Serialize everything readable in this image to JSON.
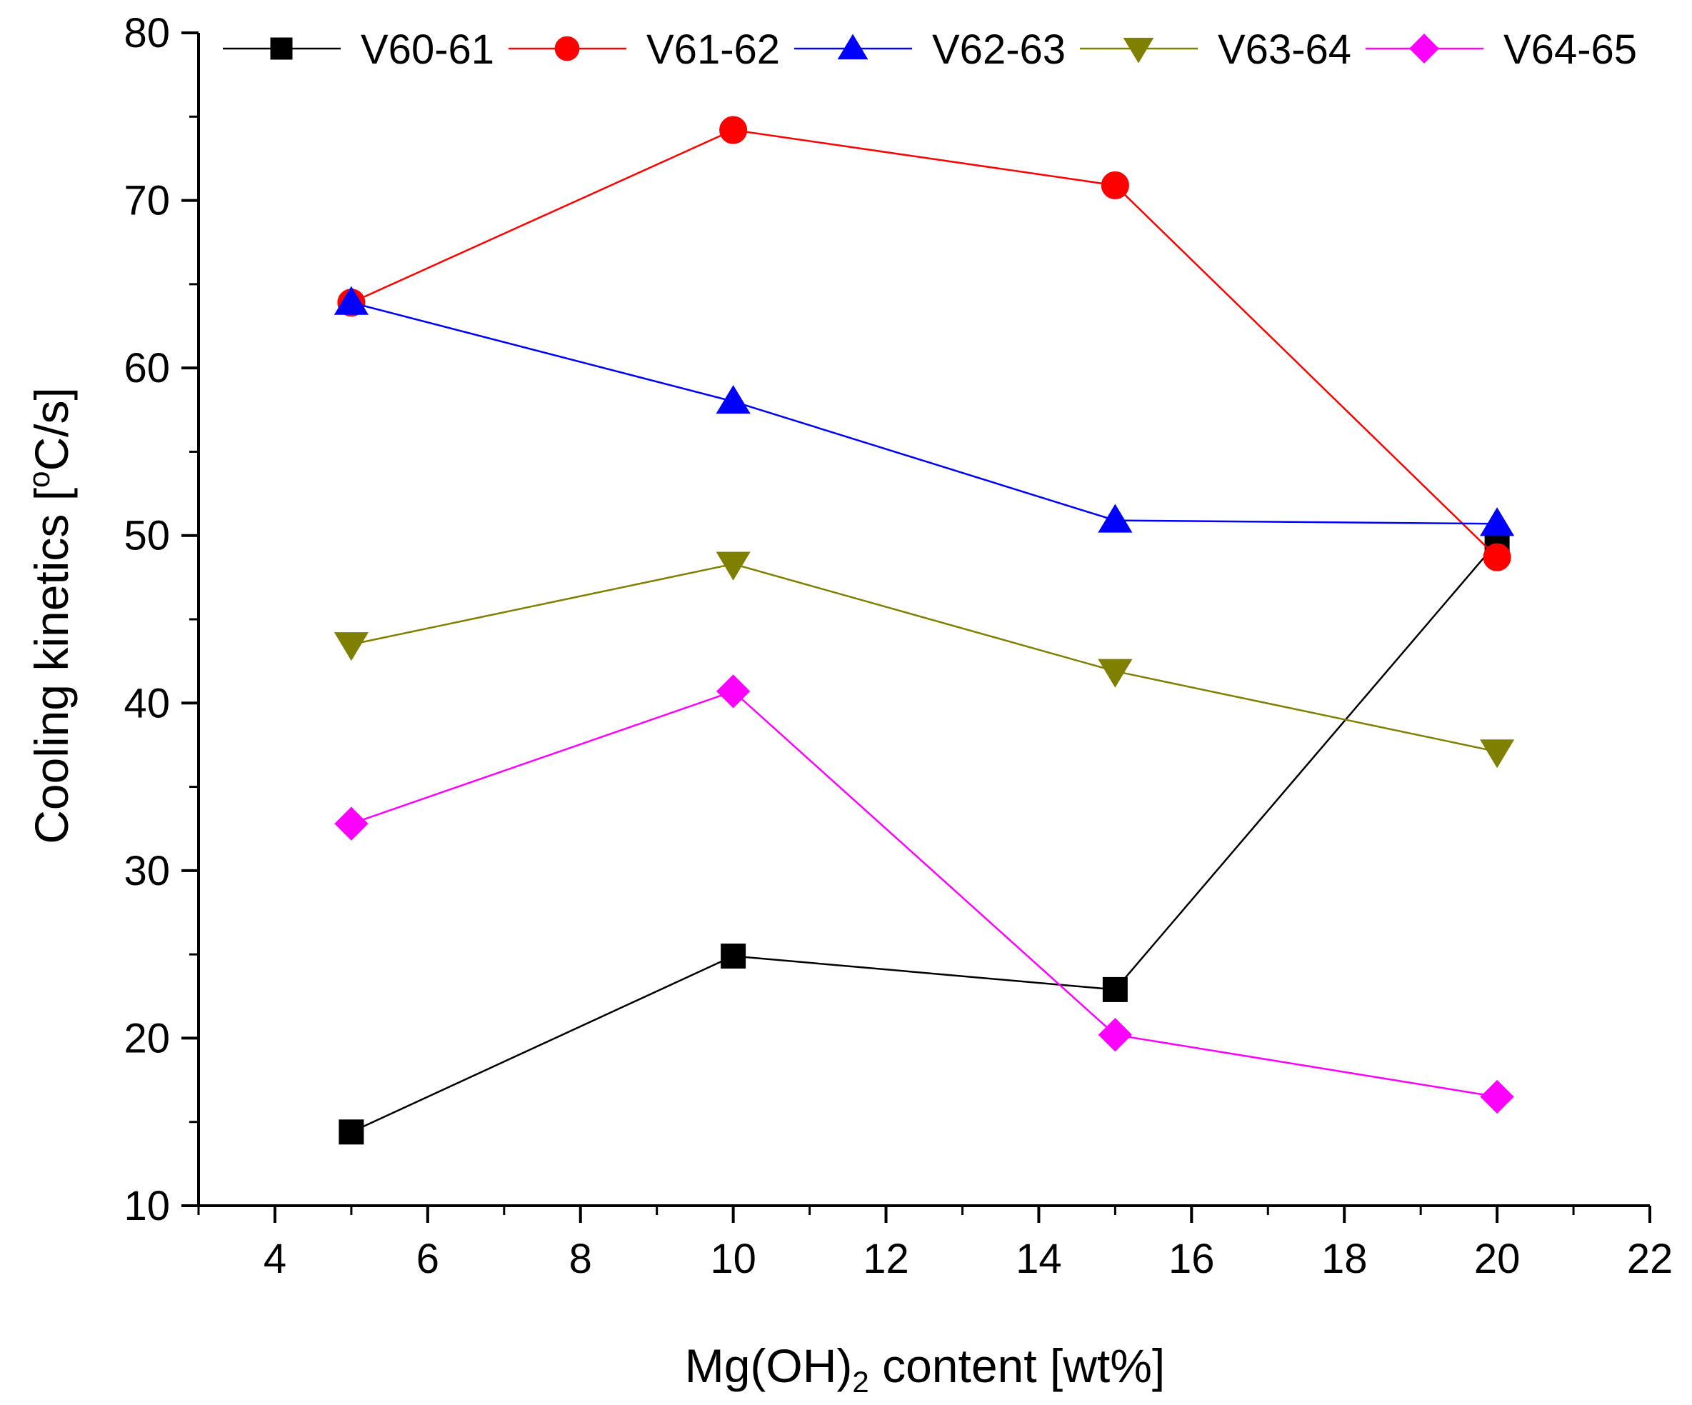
{
  "chart_data": {
    "type": "line",
    "xlabel_main": "Mg(OH)",
    "xlabel_sub": "2",
    "xlabel_rest": " content [wt%]",
    "ylabel_main": "Cooling kinetics [",
    "ylabel_sup": "o",
    "ylabel_rest": "C/s]",
    "xlim": [
      3,
      22
    ],
    "ylim": [
      10,
      80
    ],
    "x_ticks": [
      4,
      6,
      8,
      10,
      12,
      14,
      16,
      18,
      20,
      22
    ],
    "y_ticks": [
      10,
      20,
      30,
      40,
      50,
      60,
      70,
      80
    ],
    "x_tick_labels": [
      "4",
      "6",
      "8",
      "10",
      "12",
      "14",
      "16",
      "18",
      "20",
      "22"
    ],
    "y_tick_labels": [
      "10",
      "20",
      "30",
      "40",
      "50",
      "60",
      "70",
      "80"
    ],
    "x": [
      5,
      10,
      15,
      20
    ],
    "legend_position": "top",
    "series": [
      {
        "name": "V60-61",
        "color": "#000000",
        "marker": "square",
        "values": [
          14.4,
          24.9,
          22.9,
          49.6
        ]
      },
      {
        "name": "V61-62",
        "color": "#ff0000",
        "marker": "circle",
        "values": [
          63.9,
          74.2,
          70.9,
          48.7
        ]
      },
      {
        "name": "V62-63",
        "color": "#0000ff",
        "marker": "triangle-up",
        "values": [
          63.9,
          58.0,
          50.9,
          50.7
        ]
      },
      {
        "name": "V63-64",
        "color": "#808000",
        "marker": "triangle-down",
        "values": [
          43.5,
          48.3,
          41.9,
          37.1
        ]
      },
      {
        "name": "V64-65",
        "color": "#ff00ff",
        "marker": "diamond",
        "values": [
          32.8,
          40.7,
          20.2,
          16.5
        ]
      }
    ]
  }
}
